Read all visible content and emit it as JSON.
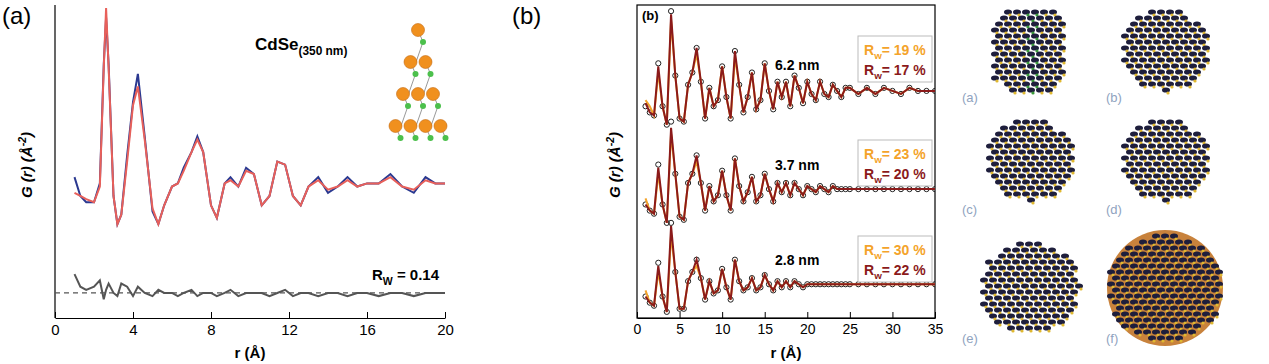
{
  "chart_data": [
    {
      "type": "line",
      "panel_label": "(a)",
      "title": {
        "main": "CdSe",
        "sub": "(350 nm)"
      },
      "x_label": "r (Å)",
      "y_label": {
        "main": "G (r) (Å",
        "sup": "-2",
        "rest": ")"
      },
      "x": [
        1.0,
        1.3,
        1.6,
        2.0,
        2.3,
        2.5,
        2.62,
        2.75,
        3.0,
        3.2,
        3.4,
        3.7,
        4.0,
        4.25,
        4.6,
        5.0,
        5.3,
        5.6,
        6.0,
        6.3,
        6.6,
        7.0,
        7.3,
        7.6,
        8.0,
        8.3,
        8.7,
        9.0,
        9.4,
        9.8,
        10.2,
        10.6,
        11.0,
        11.4,
        11.8,
        12.2,
        12.6,
        13.0,
        13.5,
        14.0,
        14.5,
        15.0,
        15.5,
        16.0,
        16.6,
        17.2,
        17.8,
        18.4,
        19.0,
        19.5,
        20.0
      ],
      "xlim": [
        0,
        20
      ],
      "xticks": [
        0,
        4,
        8,
        12,
        16,
        20
      ],
      "ylim": [
        0,
        10
      ],
      "tick_labels": "x",
      "series": [
        {
          "color": "#2b3990",
          "values": [
            4.5,
            3.9,
            3.7,
            3.7,
            4.3,
            8.1,
            9.6,
            8.1,
            3.9,
            3.0,
            3.3,
            5.2,
            6.9,
            7.8,
            5.8,
            3.4,
            3.0,
            3.6,
            4.2,
            4.3,
            4.8,
            5.3,
            5.8,
            5.3,
            3.6,
            3.2,
            4.3,
            4.5,
            4.2,
            4.8,
            4.6,
            3.6,
            3.9,
            5.0,
            4.9,
            3.9,
            3.6,
            4.2,
            4.5,
            4.0,
            4.2,
            4.5,
            4.2,
            4.3,
            4.3,
            4.6,
            4.2,
            4.0,
            4.5,
            4.3,
            4.3
          ]
        },
        {
          "color": "#e8605a",
          "values": [
            4.0,
            3.9,
            3.8,
            3.7,
            4.2,
            8.0,
            9.9,
            8.0,
            3.9,
            3.0,
            3.3,
            5.0,
            6.8,
            7.4,
            5.7,
            3.5,
            3.0,
            3.6,
            4.2,
            4.3,
            4.7,
            5.3,
            5.7,
            5.3,
            3.6,
            3.2,
            4.3,
            4.4,
            4.2,
            4.7,
            4.6,
            3.6,
            3.9,
            5.0,
            4.9,
            3.9,
            3.6,
            4.2,
            4.4,
            4.1,
            4.2,
            4.4,
            4.2,
            4.3,
            4.3,
            4.5,
            4.2,
            4.1,
            4.4,
            4.3,
            4.3
          ]
        },
        {
          "color": "#555555",
          "values": [
            1.4,
            1.0,
            0.9,
            1.0,
            1.2,
            0.6,
            0.9,
            1.1,
            0.8,
            0.7,
            1.1,
            1.0,
            0.7,
            1.0,
            0.8,
            0.7,
            0.9,
            0.8,
            0.8,
            0.7,
            0.8,
            0.9,
            0.7,
            0.8,
            0.8,
            0.7,
            0.8,
            0.9,
            0.7,
            0.8,
            0.8,
            0.8,
            0.7,
            0.8,
            0.9,
            0.7,
            0.8,
            0.8,
            0.7,
            0.8,
            0.8,
            0.7,
            0.8,
            0.8,
            0.7,
            0.8,
            0.8,
            0.7,
            0.8,
            0.8,
            0.8
          ]
        }
      ],
      "reference_line": {
        "value": 0.8,
        "line_style": "dashed",
        "color": "#555555"
      },
      "annotation": {
        "main": "R",
        "sub": "W",
        "rest": " = 0.14"
      }
    },
    {
      "type": "line",
      "panel_label": "(b)",
      "inner_label": "(b)",
      "x_label": "r (Å)",
      "y_label": {
        "main": "G (r) (Å",
        "sup": "-2",
        "rest": ")"
      },
      "x": [
        1,
        1.5,
        2,
        2.5,
        3,
        3.5,
        4,
        4.5,
        5,
        5.5,
        6,
        6.5,
        7,
        7.5,
        8,
        8.5,
        9,
        9.5,
        10,
        10.5,
        11,
        11.5,
        12,
        12.5,
        13,
        13.5,
        14,
        14.5,
        15,
        15.5,
        16,
        16.5,
        17,
        17.5,
        18,
        18.5,
        19,
        19.5,
        20,
        20.5,
        21,
        21.5,
        22,
        22.5,
        23,
        23.5,
        24,
        24.5,
        25,
        26,
        27,
        28,
        29,
        30,
        31,
        32,
        33,
        34,
        35
      ],
      "xlim": [
        0,
        35
      ],
      "xticks": [
        0,
        5,
        10,
        15,
        20,
        25,
        30,
        35
      ],
      "ylim": [
        0,
        10.2
      ],
      "tick_labels": "x",
      "groups": [
        {
          "label": "6.2 nm",
          "series": [
            {
              "color": "#222222",
              "marker": "circle",
              "line_style": "none",
              "values": [
                6.9,
                6.7,
                6.6,
                8.3,
                6.9,
                6.3,
                10.0,
                7.9,
                6.5,
                6.4,
                7.6,
                8.0,
                8.8,
                7.7,
                6.5,
                7.5,
                6.9,
                7.1,
                8.2,
                7.2,
                6.5,
                8.7,
                7.6,
                6.7,
                7.2,
                8.0,
                6.8,
                7.1,
                8.3,
                7.4,
                6.8,
                7.7,
                7.2,
                7.7,
                6.9,
                7.9,
                7.5,
                7.0,
                7.7,
                7.3,
                7.1,
                7.7,
                7.3,
                7.2,
                7.6,
                7.4,
                7.2,
                7.5,
                7.5,
                7.3,
                7.5,
                7.3,
                7.5,
                7.4,
                7.3,
                7.5,
                7.4,
                7.4,
                7.4
              ]
            },
            {
              "color": "#f4a32a",
              "line_style": "solid",
              "values": [
                7.1,
                6.9,
                6.6,
                8.0,
                6.9,
                6.3,
                9.7,
                7.9,
                6.5,
                6.4,
                7.6,
                8.0,
                8.6,
                7.7,
                6.5,
                7.5,
                6.9,
                7.1,
                8.2,
                7.2,
                6.5,
                8.5,
                7.6,
                6.7,
                7.2,
                8.0,
                6.8,
                7.1,
                8.3,
                7.4,
                6.8,
                7.7,
                7.2,
                7.7,
                6.9,
                7.9,
                7.5,
                7.0,
                7.7,
                7.3,
                7.1,
                7.7,
                7.3,
                7.2,
                7.6,
                7.4,
                7.2,
                7.5,
                7.5,
                7.3,
                7.5,
                7.3,
                7.5,
                7.4,
                7.3,
                7.5,
                7.4,
                7.4,
                7.4
              ]
            },
            {
              "color": "#8b1a1a",
              "line_style": "solid",
              "values": [
                7.0,
                6.7,
                6.6,
                8.2,
                6.9,
                6.3,
                9.9,
                7.9,
                6.5,
                6.4,
                7.6,
                8.0,
                8.8,
                7.7,
                6.5,
                7.5,
                6.9,
                7.1,
                8.2,
                7.2,
                6.5,
                8.7,
                7.6,
                6.7,
                7.2,
                8.0,
                6.8,
                7.1,
                8.3,
                7.4,
                6.8,
                7.7,
                7.2,
                7.7,
                6.9,
                7.9,
                7.5,
                7.0,
                7.7,
                7.3,
                7.1,
                7.7,
                7.3,
                7.2,
                7.6,
                7.4,
                7.2,
                7.5,
                7.5,
                7.3,
                7.5,
                7.3,
                7.5,
                7.4,
                7.3,
                7.5,
                7.4,
                7.4,
                7.4
              ]
            }
          ],
          "rw": [
            {
              "main": "R",
              "sub": "w",
              "rest": "= 19 %",
              "color": "#f4a32a"
            },
            {
              "main": "R",
              "sub": "w",
              "rest": "= 17 %",
              "color": "#8b1a1a"
            }
          ]
        },
        {
          "label": "3.7 nm",
          "series": [
            {
              "color": "#222222",
              "marker": "circle",
              "line_style": "none",
              "values": [
                3.7,
                3.5,
                3.4,
                5.0,
                3.7,
                3.1,
                6.4,
                4.7,
                3.3,
                3.2,
                4.4,
                4.7,
                5.3,
                4.4,
                3.5,
                4.3,
                3.8,
                4.0,
                4.8,
                4.0,
                3.5,
                5.2,
                4.3,
                3.8,
                4.1,
                4.6,
                3.8,
                4.0,
                4.7,
                4.2,
                3.8,
                4.4,
                4.1,
                4.4,
                4.0,
                4.4,
                4.2,
                4.0,
                4.3,
                4.2,
                4.1,
                4.3,
                4.2,
                4.1,
                4.3,
                4.2,
                4.2,
                4.2,
                4.2,
                4.2,
                4.2,
                4.2,
                4.2,
                4.2,
                4.2,
                4.2,
                4.2,
                4.2,
                4.2
              ]
            },
            {
              "color": "#f4a32a",
              "line_style": "solid",
              "values": [
                3.9,
                3.5,
                3.4,
                4.7,
                3.7,
                3.1,
                6.0,
                4.7,
                3.3,
                3.2,
                4.4,
                4.7,
                5.1,
                4.4,
                3.5,
                4.3,
                3.8,
                4.0,
                4.8,
                4.0,
                3.5,
                5.2,
                4.3,
                3.8,
                4.1,
                4.6,
                3.8,
                4.0,
                4.7,
                4.2,
                3.8,
                4.4,
                4.1,
                4.4,
                4.0,
                4.4,
                4.2,
                4.0,
                4.3,
                4.2,
                4.1,
                4.3,
                4.2,
                4.1,
                4.3,
                4.2,
                4.2,
                4.2,
                4.2,
                4.2,
                4.2,
                4.2,
                4.2,
                4.2,
                4.2,
                4.2,
                4.2,
                4.2,
                4.2
              ]
            },
            {
              "color": "#8b1a1a",
              "line_style": "solid",
              "values": [
                3.7,
                3.5,
                3.4,
                4.9,
                3.7,
                3.1,
                6.2,
                4.7,
                3.3,
                3.2,
                4.4,
                4.7,
                5.3,
                4.4,
                3.5,
                4.3,
                3.8,
                4.0,
                4.8,
                4.0,
                3.5,
                5.2,
                4.3,
                3.8,
                4.1,
                4.6,
                3.8,
                4.0,
                4.7,
                4.2,
                3.8,
                4.4,
                4.1,
                4.4,
                4.0,
                4.4,
                4.2,
                4.0,
                4.3,
                4.2,
                4.1,
                4.3,
                4.2,
                4.1,
                4.3,
                4.2,
                4.2,
                4.2,
                4.2,
                4.2,
                4.2,
                4.2,
                4.2,
                4.2,
                4.2,
                4.2,
                4.2,
                4.2,
                4.2
              ]
            }
          ],
          "rw": [
            {
              "main": "R",
              "sub": "w",
              "rest": "= 23 %",
              "color": "#f4a32a"
            },
            {
              "main": "R",
              "sub": "w",
              "rest": "= 20 %",
              "color": "#8b1a1a"
            }
          ]
        },
        {
          "label": "2.8 nm",
          "series": [
            {
              "color": "#222222",
              "marker": "circle",
              "line_style": "none",
              "values": [
                0.7,
                0.5,
                0.4,
                1.8,
                0.7,
                0.2,
                3.1,
                1.5,
                0.3,
                0.3,
                1.2,
                1.5,
                1.9,
                1.3,
                0.6,
                1.2,
                0.8,
                0.9,
                1.6,
                1.0,
                0.6,
                1.9,
                1.2,
                0.9,
                1.0,
                1.3,
                0.9,
                1.0,
                1.4,
                1.1,
                0.9,
                1.2,
                1.0,
                1.2,
                1.0,
                1.2,
                1.1,
                1.0,
                1.1,
                1.1,
                1.1,
                1.1,
                1.1,
                1.1,
                1.1,
                1.1,
                1.1,
                1.1,
                1.1,
                1.1,
                1.1,
                1.1,
                1.1,
                1.1,
                1.1,
                1.1,
                1.1,
                1.1,
                1.1
              ]
            },
            {
              "color": "#f4a32a",
              "line_style": "solid",
              "values": [
                0.9,
                0.5,
                0.4,
                1.5,
                0.7,
                0.2,
                2.7,
                1.5,
                0.3,
                0.3,
                1.2,
                1.5,
                1.7,
                1.3,
                0.6,
                1.2,
                0.8,
                0.9,
                1.6,
                1.0,
                0.6,
                1.9,
                1.2,
                0.9,
                1.0,
                1.3,
                0.9,
                1.0,
                1.4,
                1.1,
                0.9,
                1.2,
                1.0,
                1.2,
                1.0,
                1.2,
                1.1,
                1.0,
                1.1,
                1.1,
                1.1,
                1.1,
                1.1,
                1.1,
                1.1,
                1.1,
                1.1,
                1.1,
                1.1,
                1.1,
                1.1,
                1.1,
                1.1,
                1.1,
                1.1,
                1.1,
                1.1,
                1.1,
                1.1
              ]
            },
            {
              "color": "#8b1a1a",
              "line_style": "solid",
              "values": [
                0.7,
                0.5,
                0.4,
                1.7,
                0.7,
                0.2,
                3.0,
                1.5,
                0.3,
                0.3,
                1.2,
                1.5,
                1.9,
                1.3,
                0.6,
                1.2,
                0.8,
                0.9,
                1.6,
                1.0,
                0.6,
                1.9,
                1.2,
                0.9,
                1.0,
                1.3,
                0.9,
                1.0,
                1.4,
                1.1,
                0.9,
                1.2,
                1.0,
                1.2,
                1.0,
                1.2,
                1.1,
                1.0,
                1.1,
                1.1,
                1.1,
                1.1,
                1.1,
                1.1,
                1.1,
                1.1,
                1.1,
                1.1,
                1.1,
                1.1,
                1.1,
                1.1,
                1.1,
                1.1,
                1.1,
                1.1,
                1.1,
                1.1,
                1.1
              ]
            }
          ],
          "rw": [
            {
              "main": "R",
              "sub": "w",
              "rest": "= 30 %",
              "color": "#f4a32a"
            },
            {
              "main": "R",
              "sub": "w",
              "rest": "= 22 %",
              "color": "#8b1a1a"
            }
          ]
        }
      ],
      "structure_labels": [
        "(a)",
        "(b)",
        "(c)",
        "(d)",
        "(e)",
        "(f)"
      ]
    }
  ]
}
